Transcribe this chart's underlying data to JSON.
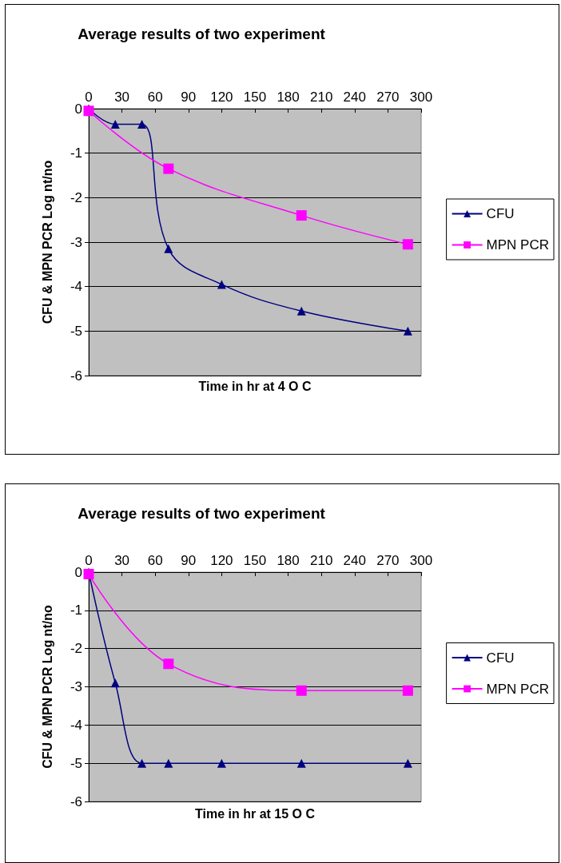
{
  "chart_data": [
    {
      "type": "line",
      "title": "Average results of two experiment",
      "xlabel": "Time in hr at 4 O C",
      "ylabel": "CFU & MPN PCR Log nt/no",
      "xlim": [
        0,
        300
      ],
      "xticks": [
        0,
        30,
        60,
        90,
        120,
        150,
        180,
        210,
        240,
        270,
        300
      ],
      "ylim": [
        -6,
        0
      ],
      "yticks": [
        -6,
        -5,
        -4,
        -3,
        -2,
        -1,
        0
      ],
      "grid": "y",
      "legend": "right",
      "series": [
        {
          "name": "CFU",
          "color": "#000080",
          "marker": "triangle",
          "x": [
            0,
            24,
            48,
            72,
            120,
            192,
            288
          ],
          "values": [
            0,
            -0.35,
            -0.35,
            -3.15,
            -3.95,
            -4.55,
            -5
          ]
        },
        {
          "name": "MPN PCR",
          "color": "#ff00ff",
          "marker": "square",
          "x": [
            0,
            72,
            192,
            288
          ],
          "values": [
            -0.05,
            -1.35,
            -2.4,
            -3.05
          ]
        }
      ]
    },
    {
      "type": "line",
      "title": "Average results of two experiment",
      "xlabel": "Time in hr at 15 O C",
      "ylabel": "CFU & MPN PCR Log nt/no",
      "xlim": [
        0,
        300
      ],
      "xticks": [
        0,
        30,
        60,
        90,
        120,
        150,
        180,
        210,
        240,
        270,
        300
      ],
      "ylim": [
        -6,
        0
      ],
      "yticks": [
        -6,
        -5,
        -4,
        -3,
        -2,
        -1,
        0
      ],
      "grid": "y",
      "legend": "right",
      "series": [
        {
          "name": "CFU",
          "color": "#000080",
          "marker": "triangle",
          "x": [
            0,
            24,
            48,
            72,
            120,
            192,
            288
          ],
          "values": [
            0,
            -2.9,
            -5,
            -5,
            -5,
            -5,
            -5
          ]
        },
        {
          "name": "MPN PCR",
          "color": "#ff00ff",
          "marker": "square",
          "x": [
            0,
            72,
            192,
            288
          ],
          "values": [
            -0.05,
            -2.4,
            -3.1,
            -3.1
          ]
        }
      ]
    }
  ]
}
